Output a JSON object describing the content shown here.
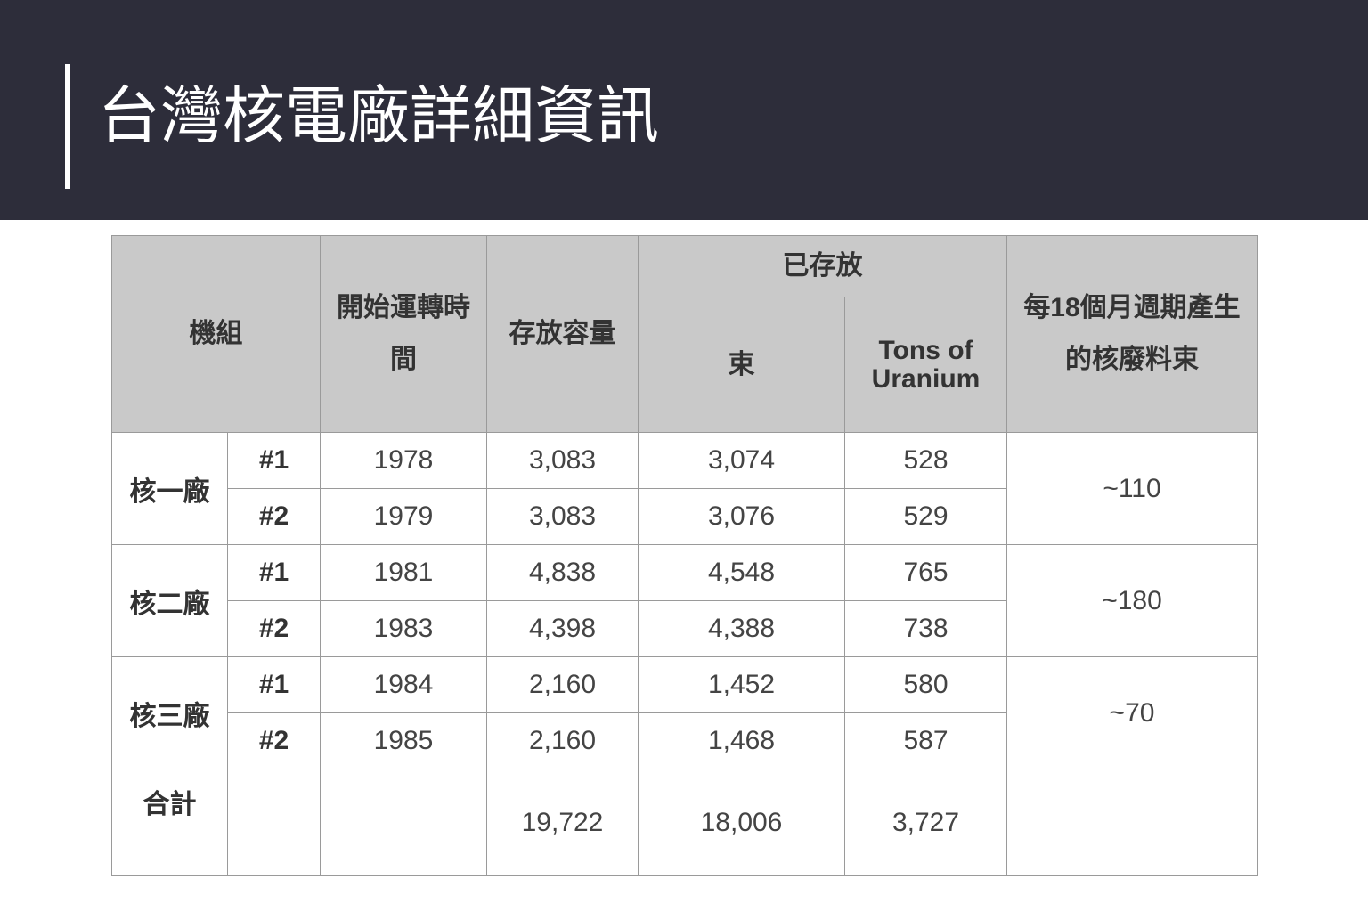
{
  "header": {
    "title": "台灣核電廠詳細資訊"
  },
  "table": {
    "headers": {
      "unit": "機組",
      "start": "開始運轉時間",
      "capacity": "存放容量",
      "stored": "已存放",
      "bundles": "束",
      "tons": "Tons of Uranium",
      "per_cycle": "每18個月週期產生的核廢料束"
    },
    "plants": [
      {
        "name": "核一廠",
        "per_cycle": "~110",
        "units": [
          {
            "unit": "#1",
            "start": "1978",
            "capacity": "3,083",
            "bundles": "3,074",
            "tons": "528"
          },
          {
            "unit": "#2",
            "start": "1979",
            "capacity": "3,083",
            "bundles": "3,076",
            "tons": "529"
          }
        ]
      },
      {
        "name": "核二廠",
        "per_cycle": "~180",
        "units": [
          {
            "unit": "#1",
            "start": "1981",
            "capacity": "4,838",
            "bundles": "4,548",
            "tons": "765"
          },
          {
            "unit": "#2",
            "start": "1983",
            "capacity": "4,398",
            "bundles": "4,388",
            "tons": "738"
          }
        ]
      },
      {
        "name": "核三廠",
        "per_cycle": "~70",
        "units": [
          {
            "unit": "#1",
            "start": "1984",
            "capacity": "2,160",
            "bundles": "1,452",
            "tons": "580"
          },
          {
            "unit": "#2",
            "start": "1985",
            "capacity": "2,160",
            "bundles": "1,468",
            "tons": "587"
          }
        ]
      }
    ],
    "total": {
      "label": "合計",
      "capacity": "19,722",
      "bundles": "18,006",
      "tons": "3,727"
    }
  }
}
